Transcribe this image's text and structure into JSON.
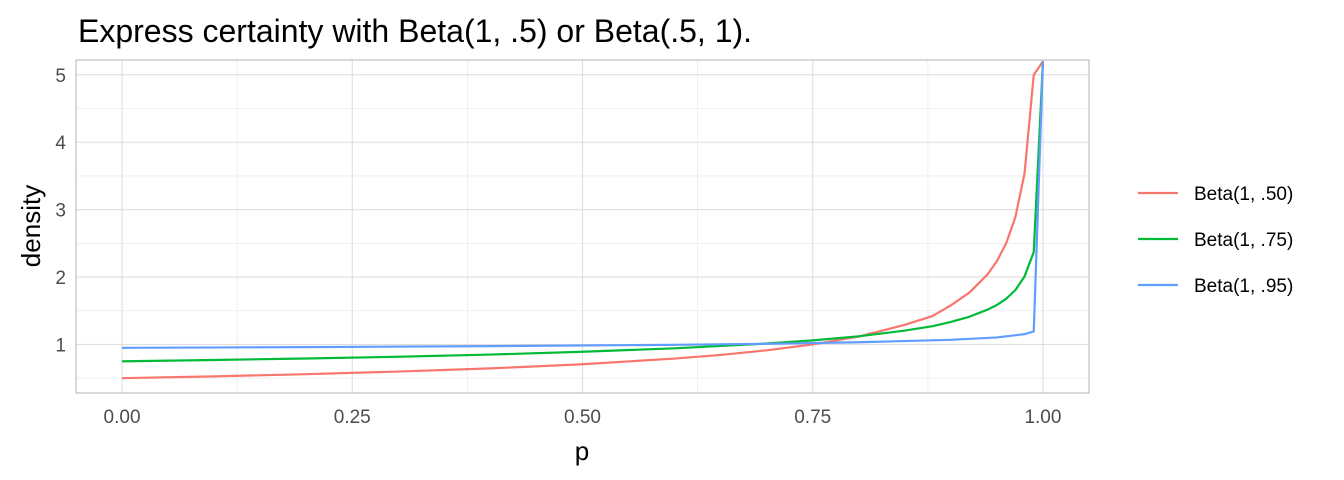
{
  "chart_data": {
    "type": "line",
    "title": "Express certainty with Beta(1, .5) or Beta(.5, 1).",
    "xlabel": "p",
    "ylabel": "density",
    "xlim": [
      -0.05,
      1.05
    ],
    "ylim": [
      0.28,
      5.22
    ],
    "x_ticks": [
      0.0,
      0.25,
      0.5,
      0.75,
      1.0
    ],
    "x_tick_labels": [
      "0.00",
      "0.25",
      "0.50",
      "0.75",
      "1.00"
    ],
    "y_ticks": [
      1,
      2,
      3,
      4,
      5
    ],
    "y_tick_labels": [
      "1",
      "2",
      "3",
      "4",
      "5"
    ],
    "grid": true,
    "legend_position": "right",
    "series": [
      {
        "name": "Beta(1, .50)",
        "color": "#F8766D",
        "x": [
          0.0,
          0.1,
          0.2,
          0.3,
          0.4,
          0.5,
          0.6,
          0.65,
          0.7,
          0.75,
          0.8,
          0.85,
          0.88,
          0.9,
          0.92,
          0.94,
          0.95,
          0.96,
          0.97,
          0.98,
          0.99,
          1.0
        ],
        "y": [
          0.5,
          0.527,
          0.559,
          0.598,
          0.645,
          0.707,
          0.791,
          0.845,
          0.913,
          1.0,
          1.118,
          1.291,
          1.421,
          1.581,
          1.768,
          2.041,
          2.236,
          2.5,
          2.887,
          3.536,
          5.0,
          5.2
        ]
      },
      {
        "name": "Beta(1, .75)",
        "color": "#00BA38",
        "x": [
          0.0,
          0.1,
          0.2,
          0.3,
          0.4,
          0.5,
          0.6,
          0.7,
          0.75,
          0.8,
          0.85,
          0.88,
          0.9,
          0.92,
          0.94,
          0.95,
          0.96,
          0.97,
          0.98,
          0.99,
          1.0
        ],
        "y": [
          0.75,
          0.77,
          0.792,
          0.818,
          0.85,
          0.892,
          0.943,
          1.014,
          1.061,
          1.121,
          1.206,
          1.271,
          1.334,
          1.411,
          1.518,
          1.586,
          1.677,
          1.806,
          2.009,
          2.371,
          5.2
        ]
      },
      {
        "name": "Beta(1, .95)",
        "color": "#619CFF",
        "x": [
          0.0,
          0.2,
          0.4,
          0.6,
          0.7,
          0.8,
          0.9,
          0.95,
          0.98,
          0.99,
          1.0
        ],
        "y": [
          0.95,
          0.961,
          0.975,
          0.995,
          1.01,
          1.033,
          1.069,
          1.104,
          1.153,
          1.193,
          5.2
        ]
      }
    ]
  }
}
